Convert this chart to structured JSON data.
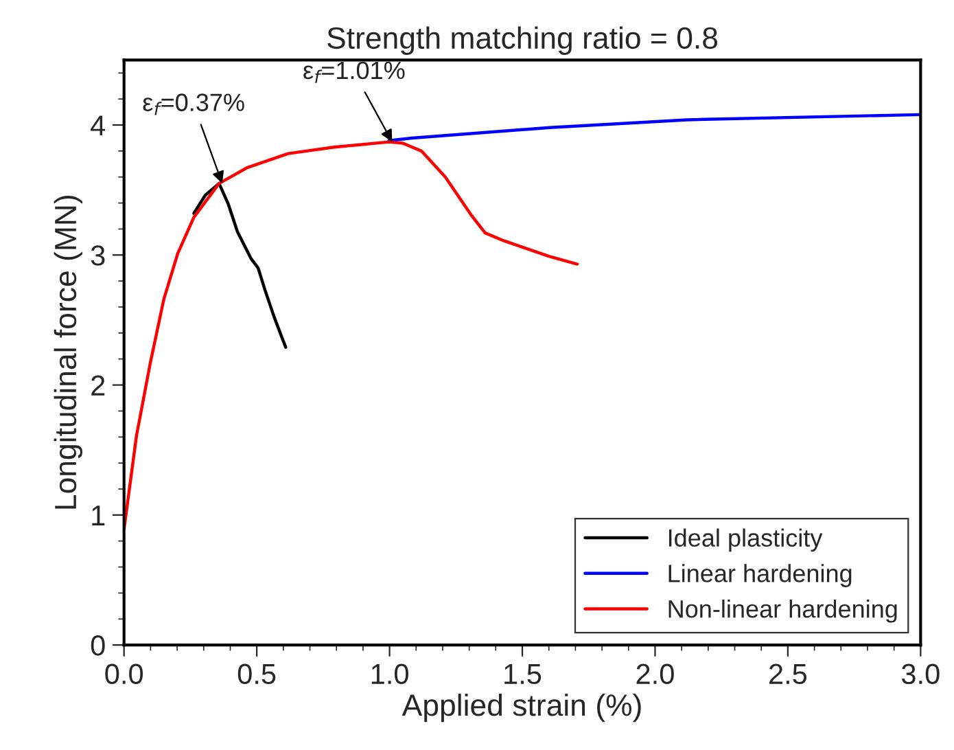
{
  "chart_data": {
    "type": "line",
    "title": "Strength matching ratio = 0.8",
    "xlabel": "Applied strain (%)",
    "ylabel": "Longitudinal force (MN)",
    "xlim": [
      0,
      3.0
    ],
    "ylim": [
      0,
      4.5
    ],
    "xticks": [
      {
        "value": 0,
        "label": "0.0"
      },
      0.5,
      {
        "value": 1,
        "label": "1.0"
      },
      1.5,
      {
        "value": 2,
        "label": "2.0"
      },
      2.5,
      {
        "value": 3,
        "label": "3.0"
      }
    ],
    "yticks": [
      0,
      1,
      2,
      3,
      4
    ],
    "grid": false,
    "legend": "bottom right",
    "marker": "none",
    "line_style": "solid",
    "series": [
      {
        "name": "Ideal plasticity",
        "color": "#000000",
        "x": [
          0.263,
          0.306,
          0.358,
          0.393,
          0.427,
          0.479,
          0.505,
          0.531,
          0.566,
          0.592,
          0.609
        ],
        "values": [
          3.32,
          3.46,
          3.55,
          3.39,
          3.18,
          2.97,
          2.9,
          2.73,
          2.52,
          2.38,
          2.29
        ]
      },
      {
        "name": "Linear hardening",
        "color": "#0000ff",
        "x": [
          0.998,
          1.085,
          1.603,
          2.12,
          3.0
        ],
        "values": [
          3.88,
          3.9,
          3.98,
          4.04,
          4.08
        ]
      },
      {
        "name": "Non-linear hardening",
        "color": "#ff0000",
        "x": [
          0,
          0.047,
          0.099,
          0.15,
          0.202,
          0.263,
          0.358,
          0.462,
          0.618,
          0.791,
          0.998,
          1.05,
          1.12,
          1.21,
          1.31,
          1.36,
          1.43,
          1.6,
          1.707
        ],
        "values": [
          0.89,
          1.61,
          2.17,
          2.66,
          3.01,
          3.29,
          3.55,
          3.67,
          3.78,
          3.83,
          3.87,
          3.86,
          3.8,
          3.6,
          3.3,
          3.17,
          3.11,
          2.99,
          2.93
        ]
      }
    ],
    "annotations": [
      {
        "text": "ε$_{f}$=0.37%",
        "x": 0.37,
        "y": 3.55
      },
      {
        "text": "ε$_{f}$=1.01%",
        "x": 1.01,
        "y": 3.87
      }
    ]
  }
}
